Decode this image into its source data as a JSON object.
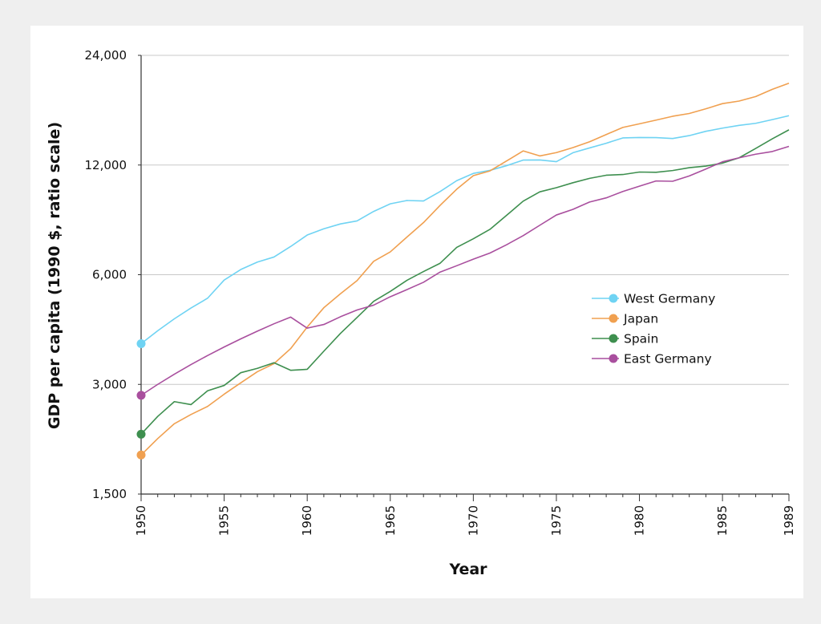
{
  "chart_data": {
    "type": "line",
    "title": "",
    "xlabel": "Year",
    "ylabel": "GDP per capita (1990 $, ratio scale)",
    "yscale": "log",
    "ylim": [
      1500,
      24000
    ],
    "xlim": [
      1950,
      1989
    ],
    "yticks": [
      1500,
      3000,
      6000,
      12000,
      24000
    ],
    "ytick_labels": [
      "1,500",
      "3,000",
      "6,000",
      "12,000",
      "24,000"
    ],
    "xticks": [
      1950,
      1955,
      1960,
      1965,
      1970,
      1975,
      1980,
      1985,
      1989
    ],
    "xtick_labels": [
      "1950",
      "1955",
      "1960",
      "1965",
      "1970",
      "1975",
      "1980",
      "1985",
      "1989"
    ],
    "legend_position": "right-middle",
    "series": [
      {
        "name": "West Germany",
        "color": "#6fd3f3",
        "start_marker": true,
        "x": [
          1950,
          1951,
          1952,
          1953,
          1954,
          1955,
          1956,
          1957,
          1958,
          1959,
          1960,
          1961,
          1962,
          1963,
          1964,
          1965,
          1966,
          1967,
          1968,
          1969,
          1970,
          1971,
          1972,
          1973,
          1974,
          1975,
          1976,
          1977,
          1978,
          1979,
          1980,
          1981,
          1982,
          1983,
          1984,
          1985,
          1986,
          1987,
          1988,
          1989
        ],
        "values": [
          3880,
          4210,
          4540,
          4860,
          5170,
          5800,
          6200,
          6500,
          6710,
          7170,
          7710,
          8020,
          8270,
          8430,
          8950,
          9390,
          9590,
          9560,
          10150,
          10870,
          11380,
          11600,
          11950,
          12380,
          12390,
          12260,
          12970,
          13370,
          13770,
          14240,
          14280,
          14270,
          14190,
          14450,
          14850,
          15150,
          15420,
          15620,
          15990,
          16390
        ]
      },
      {
        "name": "Japan",
        "color": "#f0a050",
        "start_marker": true,
        "x": [
          1950,
          1951,
          1952,
          1953,
          1954,
          1955,
          1956,
          1957,
          1958,
          1959,
          1960,
          1961,
          1962,
          1963,
          1964,
          1965,
          1966,
          1967,
          1968,
          1969,
          1970,
          1971,
          1972,
          1973,
          1974,
          1975,
          1976,
          1977,
          1978,
          1979,
          1980,
          1981,
          1982,
          1983,
          1984,
          1985,
          1986,
          1987,
          1988,
          1989
        ],
        "values": [
          1920,
          2130,
          2340,
          2480,
          2610,
          2820,
          3030,
          3250,
          3420,
          3760,
          4310,
          4870,
          5320,
          5780,
          6530,
          6930,
          7610,
          8340,
          9300,
          10300,
          11220,
          11560,
          12310,
          13120,
          12710,
          12980,
          13400,
          13900,
          14550,
          15220,
          15570,
          15940,
          16330,
          16620,
          17120,
          17690,
          17980,
          18500,
          19360,
          20130
        ]
      },
      {
        "name": "Spain",
        "color": "#3e8f4f",
        "start_marker": true,
        "x": [
          1950,
          1951,
          1952,
          1953,
          1954,
          1955,
          1956,
          1957,
          1958,
          1959,
          1960,
          1961,
          1962,
          1963,
          1964,
          1965,
          1966,
          1967,
          1968,
          1969,
          1970,
          1971,
          1972,
          1973,
          1974,
          1975,
          1976,
          1977,
          1978,
          1979,
          1980,
          1981,
          1982,
          1983,
          1984,
          1985,
          1986,
          1987,
          1988,
          1989
        ],
        "values": [
          2190,
          2450,
          2690,
          2640,
          2880,
          2980,
          3230,
          3320,
          3440,
          3280,
          3300,
          3700,
          4140,
          4580,
          5070,
          5400,
          5790,
          6120,
          6450,
          7130,
          7530,
          7990,
          8730,
          9550,
          10130,
          10400,
          10730,
          11030,
          11250,
          11300,
          11480,
          11460,
          11590,
          11800,
          11920,
          12150,
          12560,
          13330,
          14160,
          14990
        ]
      },
      {
        "name": "East Germany",
        "color": "#a94f9e",
        "start_marker": true,
        "x": [
          1950,
          1951,
          1952,
          1953,
          1954,
          1955,
          1956,
          1957,
          1958,
          1959,
          1960,
          1961,
          1962,
          1963,
          1964,
          1965,
          1966,
          1967,
          1968,
          1969,
          1970,
          1971,
          1972,
          1973,
          1974,
          1975,
          1976,
          1977,
          1978,
          1979,
          1980,
          1981,
          1982,
          1983,
          1984,
          1985,
          1986,
          1987,
          1988,
          1989
        ],
        "values": [
          2800,
          3000,
          3200,
          3400,
          3600,
          3800,
          4000,
          4200,
          4400,
          4590,
          4280,
          4380,
          4600,
          4800,
          4950,
          5220,
          5460,
          5720,
          6100,
          6350,
          6620,
          6880,
          7250,
          7680,
          8200,
          8750,
          9070,
          9500,
          9750,
          10150,
          10500,
          10850,
          10830,
          11200,
          11700,
          12250,
          12560,
          12850,
          13070,
          13500
        ]
      }
    ]
  }
}
